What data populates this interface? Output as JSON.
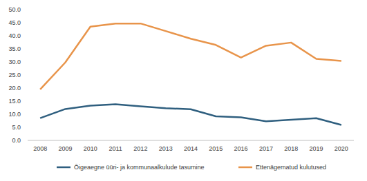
{
  "chart_data": {
    "type": "line",
    "categories": [
      "2008",
      "2009",
      "2010",
      "2011",
      "2012",
      "2013",
      "2014",
      "2015",
      "2016",
      "2017",
      "2018",
      "2019",
      "2020"
    ],
    "series": [
      {
        "name": "Õigeaegne üüri- ja kommunaalkulude tasumine",
        "color": "#2f5f7f",
        "values": [
          8.5,
          12.0,
          13.3,
          13.8,
          13.0,
          12.3,
          11.9,
          9.2,
          8.8,
          7.3,
          7.9,
          8.5,
          5.9
        ]
      },
      {
        "name": "Ettenägematud kulutused",
        "color": "#e8944a",
        "values": [
          19.5,
          29.8,
          43.5,
          44.7,
          44.7,
          41.8,
          38.9,
          36.5,
          31.7,
          36.2,
          37.4,
          31.2,
          30.4
        ]
      }
    ],
    "ylim": [
      0,
      50
    ],
    "yticks": [
      {
        "value": 0,
        "label": "0.0"
      },
      {
        "value": 5,
        "label": "5.0"
      },
      {
        "value": 10,
        "label": "10.0"
      },
      {
        "value": 15,
        "label": "15.0"
      },
      {
        "value": 20,
        "label": "20.0"
      },
      {
        "value": 25,
        "label": "25.0"
      },
      {
        "value": 30,
        "label": "30.0"
      },
      {
        "value": 35,
        "label": "35.0"
      },
      {
        "value": 40,
        "label": "40.0"
      },
      {
        "value": 45,
        "label": "45.0"
      },
      {
        "value": 50,
        "label": "50.0"
      }
    ],
    "grid": false,
    "legend": "bottom"
  }
}
